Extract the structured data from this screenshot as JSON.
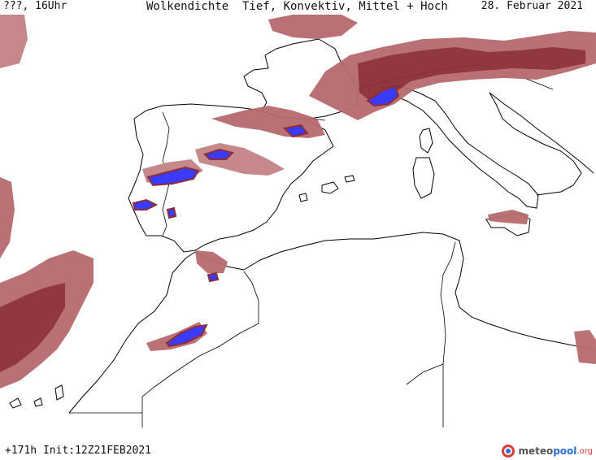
{
  "header": {
    "left": "???, 16Uhr",
    "title": "Wolkendichte  Tief, Konvektiv, Mittel + Hoch",
    "date": "28. Februar 2021"
  },
  "footer": {
    "run": "+171h Init:12Z21FEB2021"
  },
  "logo": {
    "part1": "meteo",
    "part2": "pool",
    "part3": ".org"
  },
  "colors": {
    "cloud_dark": "#8b2d36",
    "cloud_mid": "#b76a6e",
    "cloud_light": "#d8a8aa",
    "convective": "#3b3bff",
    "coast": "#000000"
  }
}
